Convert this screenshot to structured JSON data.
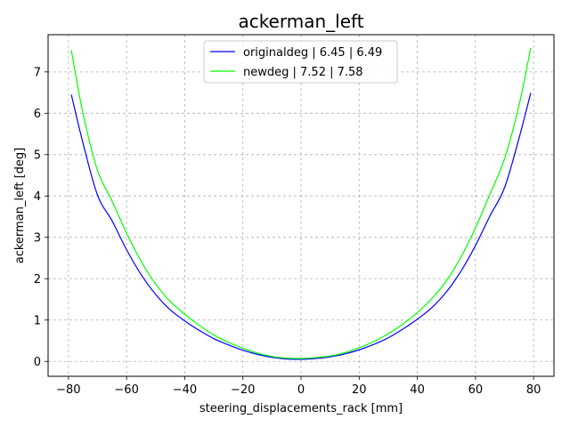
{
  "chart_data": {
    "type": "line",
    "title": "ackerman_left",
    "xlabel": "steering_displacements_rack [mm]",
    "ylabel": "ackerman_left [deg]",
    "xlim": [
      -87,
      87
    ],
    "ylim": [
      -0.36,
      7.9
    ],
    "xticks": [
      -80,
      -60,
      -40,
      -20,
      0,
      20,
      40,
      60,
      80
    ],
    "xtick_labels": [
      "−80",
      "−60",
      "−40",
      "−20",
      "0",
      "20",
      "40",
      "60",
      "80"
    ],
    "yticks": [
      0,
      1,
      2,
      3,
      4,
      5,
      6,
      7
    ],
    "ytick_labels": [
      "0",
      "1",
      "2",
      "3",
      "4",
      "5",
      "6",
      "7"
    ],
    "grid": true,
    "legend_position": "upper-center",
    "series": [
      {
        "name": "originaldeg | 6.45 | 6.49",
        "color": "#0000ff",
        "x": [
          -79,
          -75,
          -70,
          -65,
          -60,
          -55,
          -50,
          -45,
          -40,
          -35,
          -30,
          -25,
          -20,
          -15,
          -10,
          -5,
          0,
          5,
          10,
          15,
          20,
          25,
          30,
          35,
          40,
          45,
          50,
          55,
          60,
          65,
          70,
          75,
          79
        ],
        "y": [
          6.45,
          5.28,
          4.02,
          3.4,
          2.7,
          2.1,
          1.62,
          1.25,
          0.98,
          0.75,
          0.55,
          0.4,
          0.27,
          0.17,
          0.1,
          0.06,
          0.05,
          0.07,
          0.11,
          0.18,
          0.28,
          0.41,
          0.57,
          0.78,
          1.02,
          1.3,
          1.68,
          2.18,
          2.8,
          3.52,
          4.2,
          5.4,
          6.49
        ]
      },
      {
        "name": "newdeg | 7.52 | 7.58",
        "color": "#00ff00",
        "x": [
          -79,
          -75,
          -70,
          -65,
          -60,
          -55,
          -50,
          -45,
          -40,
          -35,
          -30,
          -25,
          -20,
          -15,
          -10,
          -5,
          0,
          5,
          10,
          15,
          20,
          25,
          30,
          35,
          40,
          45,
          50,
          55,
          60,
          65,
          70,
          75,
          79
        ],
        "y": [
          7.52,
          6.0,
          4.62,
          3.88,
          3.1,
          2.42,
          1.87,
          1.45,
          1.14,
          0.87,
          0.64,
          0.46,
          0.32,
          0.2,
          0.12,
          0.08,
          0.07,
          0.09,
          0.13,
          0.21,
          0.33,
          0.48,
          0.67,
          0.9,
          1.18,
          1.52,
          1.95,
          2.52,
          3.23,
          4.05,
          4.9,
          6.2,
          7.58
        ]
      }
    ]
  }
}
